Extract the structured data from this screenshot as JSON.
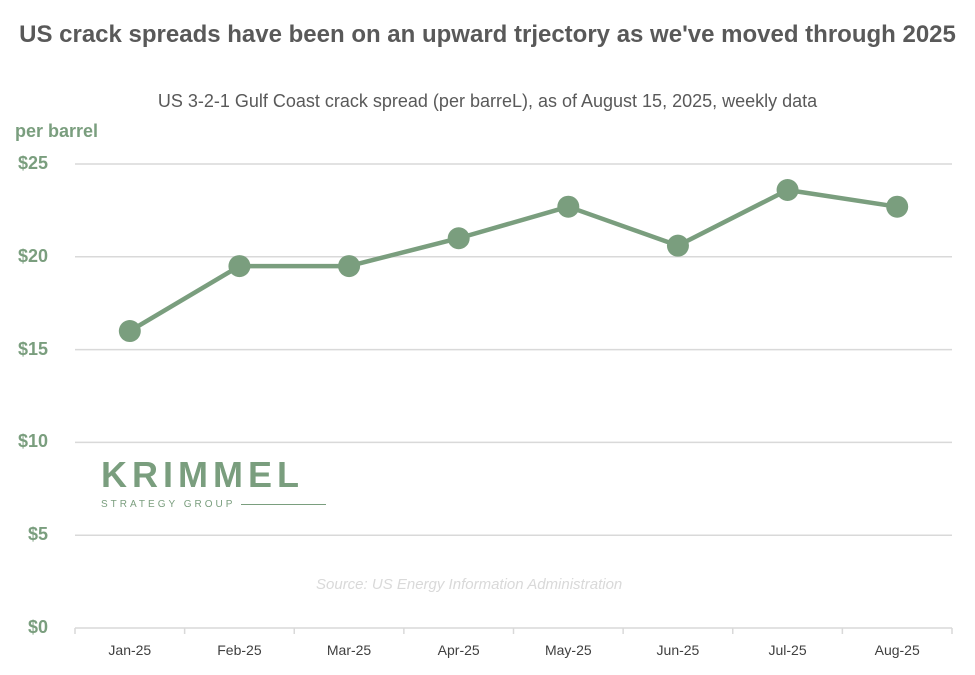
{
  "chart_data": {
    "type": "line",
    "title": "US crack spreads have been on an upward trjectory as we've moved through 2025",
    "subtitle": "US 3-2-1 Gulf Coast crack spread (per barreL), as of August 15, 2025, weekly data",
    "ylabel": "per barrel",
    "xlabel": "",
    "categories": [
      "Jan-25",
      "Feb-25",
      "Mar-25",
      "Apr-25",
      "May-25",
      "Jun-25",
      "Jul-25",
      "Aug-25"
    ],
    "values": [
      16.0,
      19.5,
      19.5,
      21.0,
      22.7,
      20.6,
      23.6,
      22.7
    ],
    "ylim": [
      0,
      25
    ],
    "yticks": [
      {
        "value": 0,
        "label": "$0"
      },
      {
        "value": 5,
        "label": "$5"
      },
      {
        "value": 10,
        "label": "$10"
      },
      {
        "value": 15,
        "label": "$15"
      },
      {
        "value": 20,
        "label": "$20"
      },
      {
        "value": 25,
        "label": "$25"
      }
    ],
    "grid": true,
    "legend": "none",
    "series_color": "#7a9e7e",
    "gridline_color": "#d9d9d9",
    "source": "Source: US Energy Information Administration"
  },
  "logo": {
    "name": "KRIMMEL",
    "tagline": "STRATEGY GROUP",
    "color": "#7a9e7e"
  }
}
